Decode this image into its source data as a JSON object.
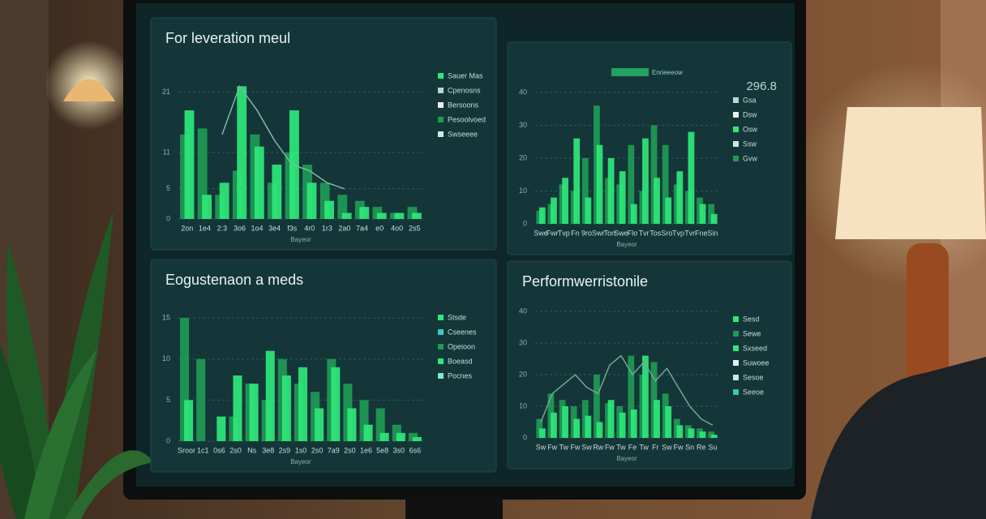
{
  "chart_data": [
    {
      "type": "bar",
      "title": "For leveration meul",
      "x_label": "Bayeor",
      "categories": [
        "2on",
        "1e4",
        "2:3",
        "3o6",
        "1o4",
        "3e4",
        "f3s",
        "4r0",
        "1r3",
        "2a0",
        "7a4",
        "e0",
        "4o0",
        "2s5"
      ],
      "series": [
        {
          "color": "#1f9a55",
          "values": [
            14,
            15,
            4,
            8,
            14,
            6,
            11,
            9,
            6,
            4,
            3,
            2,
            1,
            2
          ]
        },
        {
          "color": "#2ee87a",
          "values": [
            18,
            4,
            6,
            22,
            12,
            9,
            18,
            6,
            3,
            1,
            2,
            1,
            1,
            1
          ]
        },
        {
          "type": "line",
          "color": "#7fb8a8",
          "values": [
            null,
            null,
            14,
            22,
            18,
            13,
            9,
            8,
            6,
            5,
            null,
            null,
            null,
            null
          ]
        }
      ],
      "legend": [
        {
          "label": "Sauer Mas",
          "color": "#2ee87a"
        },
        {
          "label": "Cpenosns",
          "color": "#b8d8d0"
        },
        {
          "label": "Bersoons",
          "color": "#e8f0ee"
        },
        {
          "label": "Pesoolvoed",
          "color": "#1f9a55"
        },
        {
          "label": "Swseeee",
          "color": "#d0e8e0"
        }
      ],
      "ylim": [
        0,
        25
      ],
      "yticks": [
        0,
        5,
        11,
        21
      ],
      "grid": true
    },
    {
      "type": "bar",
      "badge": "296.8",
      "subtitle": "Enrieeeow",
      "x_label": "Bayeor",
      "categories": [
        "Swe",
        "Fwr",
        "Tvp",
        "Fn",
        "9ro",
        "Swr",
        "Ton",
        "Swe",
        "Flo",
        "Tvr",
        "Tos",
        "Sro",
        "Tvp",
        "Tvr",
        "Fne",
        "Sin"
      ],
      "series": [
        {
          "color": "#1f9a55",
          "values": [
            4,
            6,
            12,
            10,
            20,
            36,
            14,
            12,
            24,
            10,
            30,
            24,
            12,
            10,
            8,
            6
          ]
        },
        {
          "color": "#2ee87a",
          "values": [
            5,
            8,
            14,
            26,
            8,
            24,
            20,
            16,
            6,
            26,
            14,
            8,
            16,
            28,
            6,
            3
          ]
        }
      ],
      "legend": [
        {
          "label": "Gsa",
          "color": "#b8d8d0"
        },
        {
          "label": "Dsw",
          "color": "#e8f0ee"
        },
        {
          "label": "Osw",
          "color": "#2ee87a"
        },
        {
          "label": "Ssw",
          "color": "#d0e8e0"
        },
        {
          "label": "Gvw",
          "color": "#1f9a55"
        }
      ],
      "ylim": [
        0,
        40
      ],
      "yticks": [
        0,
        10,
        20,
        30,
        40
      ],
      "grid": true
    },
    {
      "type": "bar",
      "title": "Eogustenaon a meds",
      "x_label": "Bayeor",
      "categories": [
        "Sroor",
        "1c1",
        "0s6",
        "2s0",
        "Ns",
        "3e8",
        "2s9",
        "1s0",
        "2s0",
        "7a9",
        "2s0",
        "1e6",
        "5e8",
        "3s0",
        "6s6"
      ],
      "series": [
        {
          "color": "#1f9a55",
          "values": [
            15,
            10,
            0,
            3,
            7,
            5,
            10,
            7,
            6,
            10,
            7,
            5,
            4,
            2,
            1
          ]
        },
        {
          "color": "#2ee87a",
          "values": [
            5,
            0,
            3,
            8,
            7,
            11,
            8,
            9,
            4,
            9,
            4,
            2,
            1,
            1,
            0.5
          ]
        }
      ],
      "legend": [
        {
          "label": "Stsde",
          "color": "#2ee87a"
        },
        {
          "label": "Cseenes",
          "color": "#3ac8c0"
        },
        {
          "label": "Opeioon",
          "color": "#1f9a55"
        },
        {
          "label": "Boeasd",
          "color": "#2ee87a"
        },
        {
          "label": "Pocnes",
          "color": "#7fe8c8"
        }
      ],
      "ylim": [
        0,
        16
      ],
      "yticks": [
        0,
        5,
        10,
        15
      ],
      "grid": true
    },
    {
      "type": "bar",
      "title": "Performwerristonile",
      "x_label": "Bayeor",
      "categories": [
        "Sw",
        "Fw",
        "Tw",
        "Fw",
        "Sw",
        "Rw",
        "Fw",
        "Tw",
        "Fe",
        "Tw",
        "Fr",
        "Sw",
        "Fw",
        "Sn",
        "Re",
        "Su"
      ],
      "series": [
        {
          "color": "#1f9a55",
          "values": [
            6,
            14,
            12,
            10,
            12,
            20,
            11,
            10,
            26,
            20,
            24,
            14,
            6,
            4,
            3,
            2
          ]
        },
        {
          "color": "#2ee87a",
          "values": [
            3,
            8,
            10,
            6,
            7,
            5,
            12,
            8,
            9,
            26,
            12,
            10,
            4,
            3,
            2,
            1
          ]
        },
        {
          "type": "line",
          "color": "#6fa898",
          "values": [
            5,
            14,
            17,
            20,
            16,
            14,
            23,
            26,
            20,
            24,
            18,
            22,
            16,
            10,
            6,
            4
          ]
        }
      ],
      "legend": [
        {
          "label": "Sesd",
          "color": "#2ee87a"
        },
        {
          "label": "Sewe",
          "color": "#1f9a55"
        },
        {
          "label": "Sxseed",
          "color": "#2ee87a"
        },
        {
          "label": "Suwoee",
          "color": "#e8f0ee"
        },
        {
          "label": "Sesoe",
          "color": "#d0e8e0"
        },
        {
          "label": "Seeoe",
          "color": "#3ac8a0"
        }
      ],
      "ylim": [
        0,
        40
      ],
      "yticks": [
        0,
        10,
        20,
        30,
        40
      ],
      "grid": true
    }
  ]
}
